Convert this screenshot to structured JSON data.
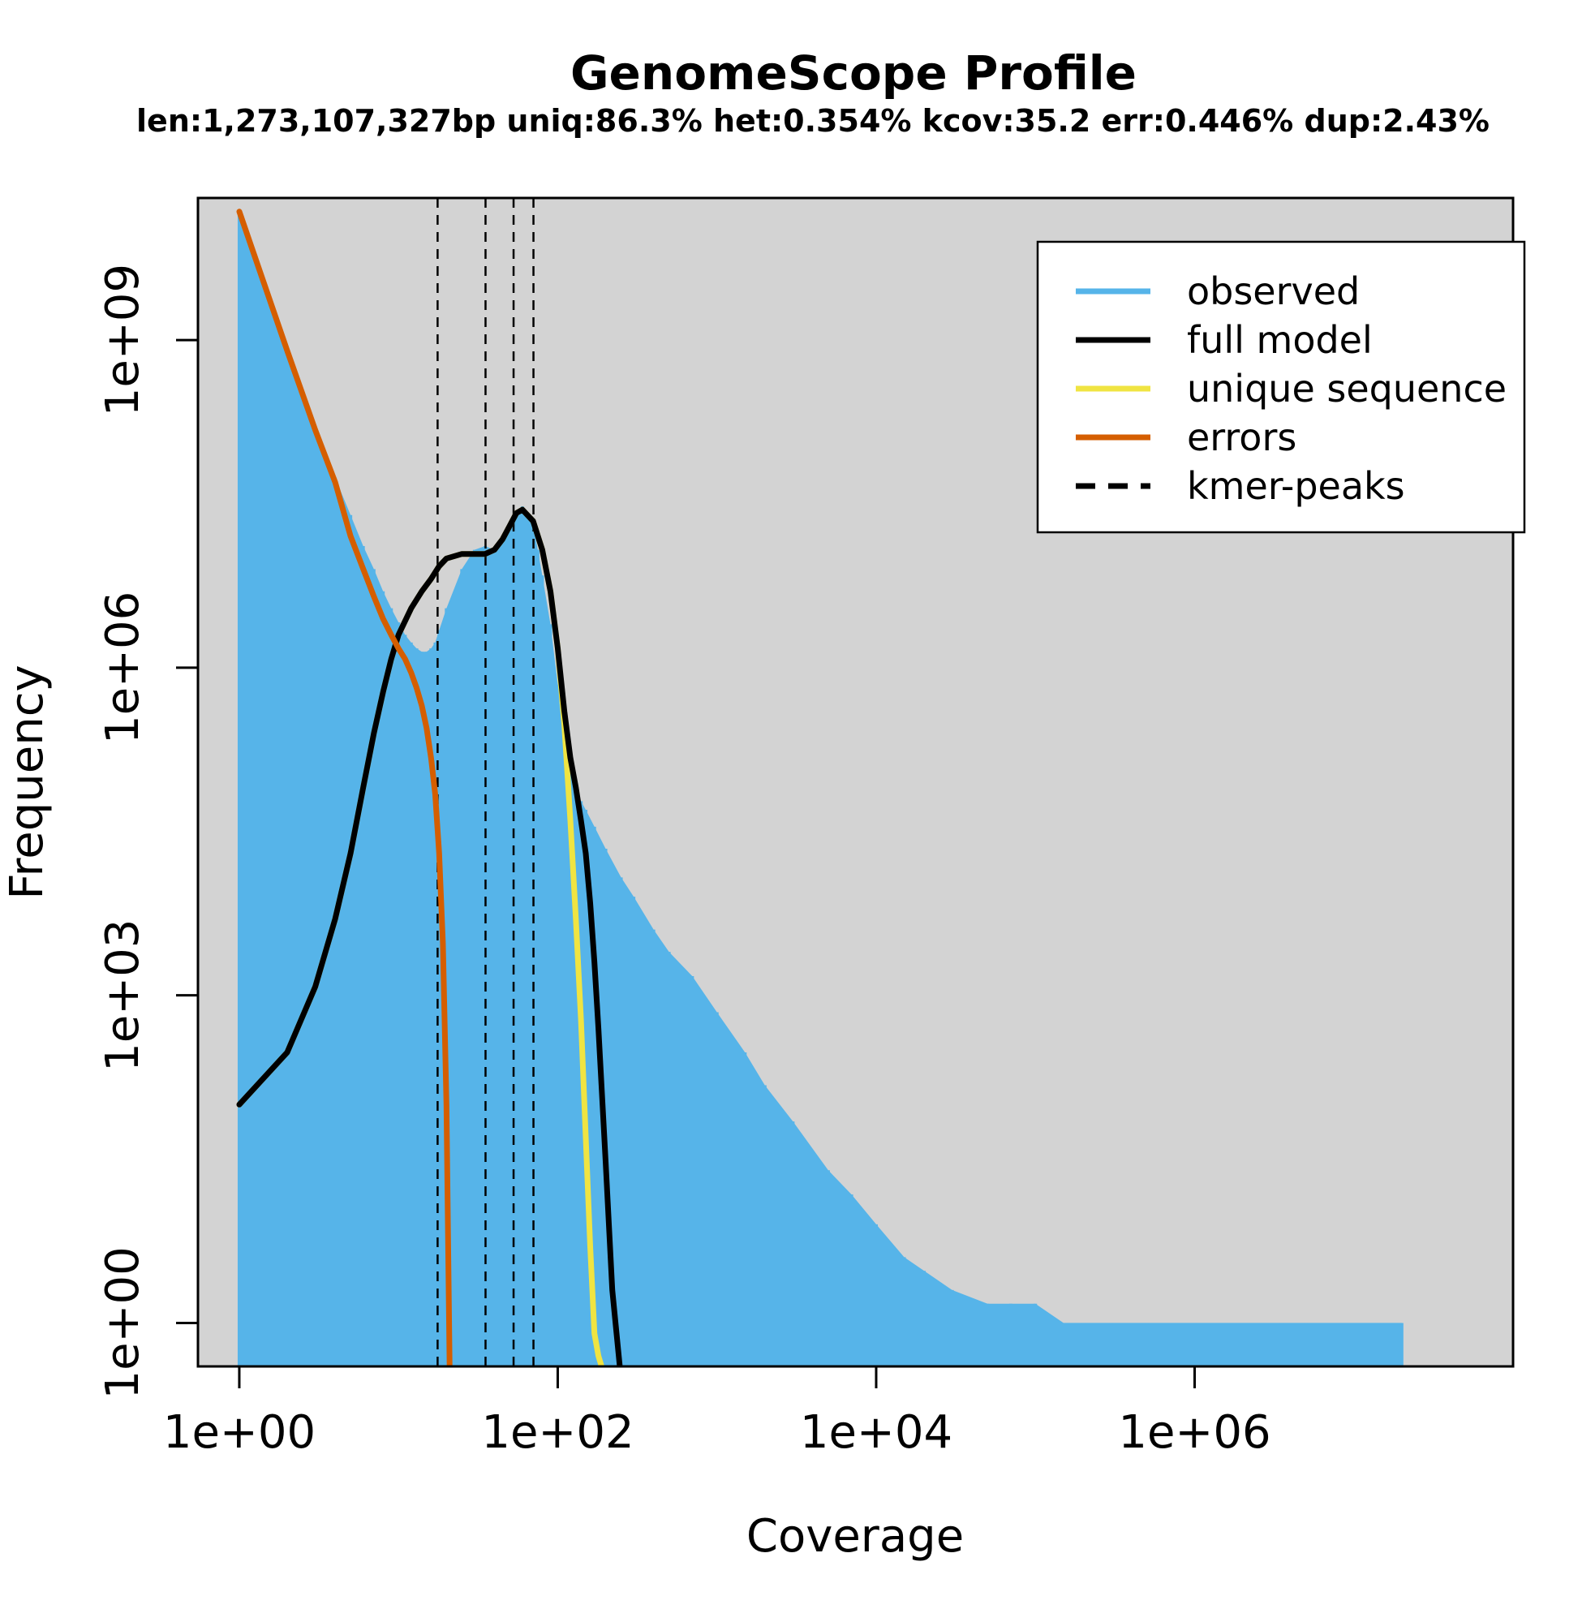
{
  "chart_data": {
    "type": "line",
    "title": "GenomeScope Profile",
    "subtitle": "len:1,273,107,327bp uniq:86.3%  het:0.354% kcov:35.2 err:0.446%  dup:2.43%",
    "xlabel": "Coverage",
    "ylabel": "Frequency",
    "x_scale": "log10",
    "y_scale": "log10",
    "xlim": [
      0.55,
      100000000
    ],
    "ylim": [
      0.4,
      20000000000
    ],
    "x_ticks": [
      1,
      100,
      10000,
      1000000
    ],
    "x_tick_labels": [
      "1e+00",
      "1e+02",
      "1e+04",
      "1e+06"
    ],
    "y_ticks": [
      1,
      1000,
      1000000,
      1000000000
    ],
    "y_tick_labels": [
      "1e+00",
      "1e+03",
      "1e+06",
      "1e+09"
    ],
    "grid": false,
    "background": "#d3d3d3",
    "legend_position": "top-right",
    "kmer_peaks": [
      17.6,
      35.2,
      52.8,
      70.4
    ],
    "series": [
      {
        "name": "observed",
        "color": "#56b4e9",
        "style": "histogram",
        "x": [
          1,
          2,
          3,
          4,
          5,
          6,
          7,
          8,
          9,
          10,
          11,
          12,
          13,
          14,
          15,
          16,
          17,
          18,
          20,
          25,
          30,
          35,
          40,
          45,
          50,
          55,
          60,
          65,
          70,
          75,
          80,
          90,
          100,
          110,
          120,
          130,
          140,
          150,
          170,
          200,
          250,
          300,
          400,
          500,
          700,
          1000,
          1500,
          2000,
          3000,
          5000,
          7000,
          10000,
          15000,
          20000,
          30000,
          50000,
          70000,
          100000,
          150000,
          200000,
          300000,
          500000,
          1000000,
          2000000,
          3000000,
          3500000,
          5000000,
          10000000,
          15000000,
          20000000
        ],
        "y": [
          15000000000,
          800000000,
          150000000,
          55000000,
          25000000,
          13000000,
          8000000,
          5000000,
          3500000,
          2600000,
          2000000,
          1700000,
          1500000,
          1400000,
          1400000,
          1500000,
          1700000,
          2200000,
          3500000,
          8000000,
          12000000,
          13000000,
          12000000,
          15000000,
          20000000,
          25000000,
          30000000,
          25000000,
          20000000,
          12000000,
          7000000,
          2500000,
          700000,
          250000,
          120000,
          80000,
          60000,
          50000,
          35000,
          22000,
          12000,
          8000,
          4000,
          2500,
          1500,
          700,
          300,
          150,
          70,
          25,
          15,
          8,
          4,
          3,
          2,
          1.5,
          1.5,
          1.5,
          1,
          1,
          1,
          1,
          1,
          1,
          1,
          1,
          1,
          1,
          1,
          1
        ]
      },
      {
        "name": "full model",
        "color": "#000000",
        "x": [
          1,
          2,
          3,
          4,
          5,
          6,
          7,
          8,
          9,
          10,
          12,
          14,
          16,
          18,
          20,
          25,
          30,
          35,
          40,
          45,
          50,
          55,
          60,
          70,
          80,
          90,
          100,
          110,
          120,
          130,
          140,
          150,
          160,
          170,
          180,
          200,
          220,
          250
        ],
        "y": [
          100,
          300,
          1200,
          5000,
          20000,
          80000,
          250000,
          600000,
          1200000,
          2000000,
          3500000,
          5000000,
          6500000,
          8500000,
          10000000,
          11000000,
          11000000,
          11000000,
          12000000,
          15000000,
          20000000,
          26000000,
          28000000,
          22000000,
          12000000,
          5000000,
          1500000,
          400000,
          150000,
          80000,
          40000,
          20000,
          7000,
          2000,
          500,
          30,
          2,
          0.3
        ]
      },
      {
        "name": "unique sequence",
        "color": "#f0e442",
        "x": [
          1,
          2,
          3,
          4,
          5,
          6,
          7,
          8,
          9,
          10,
          12,
          14,
          16,
          18,
          20,
          25,
          30,
          35,
          40,
          45,
          50,
          55,
          60,
          70,
          80,
          90,
          100,
          110,
          120,
          130,
          140,
          150,
          160,
          170,
          180,
          200
        ],
        "y": [
          100,
          300,
          1200,
          5000,
          20000,
          80000,
          250000,
          600000,
          1200000,
          2000000,
          3500000,
          5000000,
          6500000,
          8500000,
          10000000,
          11000000,
          11000000,
          11000000,
          12000000,
          15000000,
          20000000,
          26000000,
          28000000,
          22000000,
          12000000,
          5000000,
          1500000,
          300000,
          40000,
          5000,
          600,
          50,
          5,
          0.8,
          0.5,
          0.3
        ]
      },
      {
        "name": "errors",
        "color": "#d55e00",
        "x": [
          1,
          2,
          3,
          4,
          5,
          6,
          7,
          8,
          9,
          10,
          11,
          12,
          13,
          14,
          15,
          16,
          17,
          18,
          19,
          20,
          21
        ],
        "y": [
          15000000000,
          800000000,
          150000000,
          50000000,
          16000000,
          8000000,
          4500000,
          2800000,
          2000000,
          1500000,
          1200000,
          900000,
          650000,
          450000,
          280000,
          150000,
          70000,
          20000,
          3000,
          100,
          0.3
        ]
      },
      {
        "name": "kmer-peaks",
        "color": "#000000",
        "style": "dashed"
      }
    ]
  }
}
